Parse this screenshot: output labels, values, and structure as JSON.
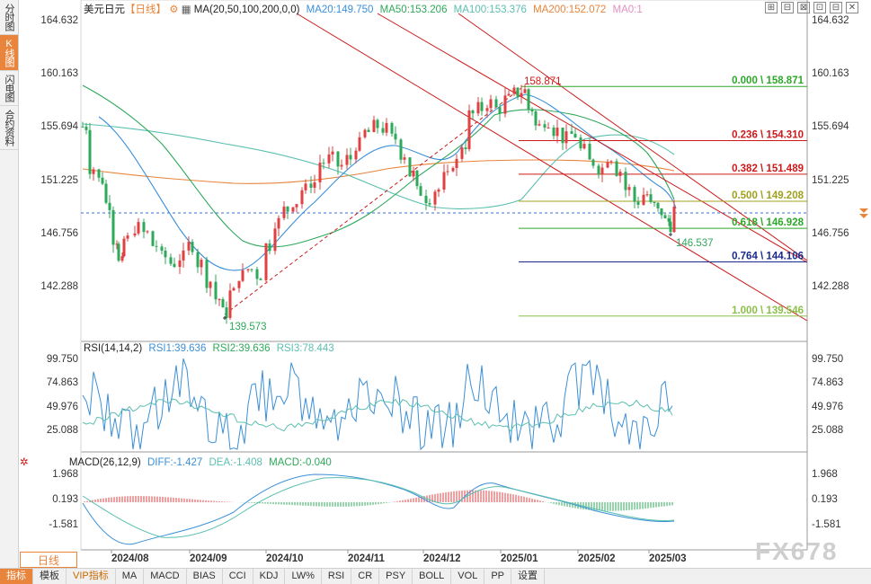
{
  "sidebar": {
    "tabs": [
      {
        "label": "分时图",
        "active": false
      },
      {
        "label": "K线图",
        "active": true
      },
      {
        "label": "闪电图",
        "active": false
      },
      {
        "label": "合约资料",
        "active": false
      }
    ]
  },
  "header": {
    "symbol": "美元日元",
    "period": "【日线】",
    "ma_params": "MA(20,50,100,200,0,0)",
    "ma20": "MA20:149.750",
    "ma50": "MA50:153.206",
    "ma100": "MA100:153.376",
    "ma200": "MA200:152.072",
    "ma0": "MA0:1"
  },
  "window_buttons": [
    "⊞",
    "⊟",
    "⊠",
    "⊡",
    "⊟",
    "✕"
  ],
  "colors": {
    "up": "#e04040",
    "down": "#2ea85a",
    "ma20": "#3a8fd8",
    "ma50": "#2ea85a",
    "ma100": "#5bbfb0",
    "ma200": "#e8843c",
    "fib": "#cc1a1a",
    "dark": "#1a2a8a",
    "lime": "#8cc04a"
  },
  "price_axis": {
    "labels": [
      "164.632",
      "160.163",
      "155.694",
      "151.225",
      "146.756",
      "142.288"
    ]
  },
  "current_price_marker": "148.7",
  "annotations": {
    "high": "158.871",
    "low": "139.573",
    "last_low": "146.537"
  },
  "fib_levels": [
    {
      "ratio": "0.000",
      "value": "158.871",
      "label": "0.000 \\ 158.871",
      "color": "#2ea82a"
    },
    {
      "ratio": "0.236",
      "value": "154.310",
      "label": "0.236 \\ 154.310",
      "color": "#cc1a1a"
    },
    {
      "ratio": "0.382",
      "value": "151.489",
      "label": "0.382 \\ 151.489",
      "color": "#cc1a1a"
    },
    {
      "ratio": "0.500",
      "value": "149.208",
      "label": "0.500 \\ 149.208",
      "color": "#a0a020"
    },
    {
      "ratio": "0.618",
      "value": "146.928",
      "label": "0.618 \\ 146.928",
      "color": "#2ea82a"
    },
    {
      "ratio": "0.764",
      "value": "144.106",
      "label": "0.764 \\ 144.106",
      "color": "#1a2a8a"
    },
    {
      "ratio": "1.000",
      "value": "139.546",
      "label": "1.000 \\ 139.546",
      "color": "#8cc04a"
    }
  ],
  "rsi": {
    "title": "RSI(14,14,2)",
    "rsi1": "RSI1:39.636",
    "rsi2": "RSI2:39.636",
    "rsi3": "RSI3:78.443",
    "axis": [
      "99.750",
      "74.863",
      "49.976",
      "25.088"
    ]
  },
  "macd": {
    "title": "MACD(26,12,9)",
    "diff": "DIFF:-1.427",
    "dea": "DEA:-1.408",
    "macd": "MACD:-0.040",
    "axis": [
      "1.968",
      "0.193",
      "-1.581"
    ]
  },
  "x_axis": {
    "labels": [
      "2024/08",
      "2024/09",
      "2024/10",
      "2024/11",
      "2024/12",
      "2025/01",
      "2025/02",
      "2025/03"
    ]
  },
  "period_button": "日线",
  "bottom_bar": {
    "items": [
      "指标",
      "模板",
      "VIP指标",
      "MA",
      "MACD",
      "BIAS",
      "CCI",
      "KDJ",
      "LW%",
      "RSI",
      "CR",
      "PSY",
      "BOLL",
      "VOL",
      "PP",
      "设置"
    ]
  },
  "watermark": "FX678"
}
